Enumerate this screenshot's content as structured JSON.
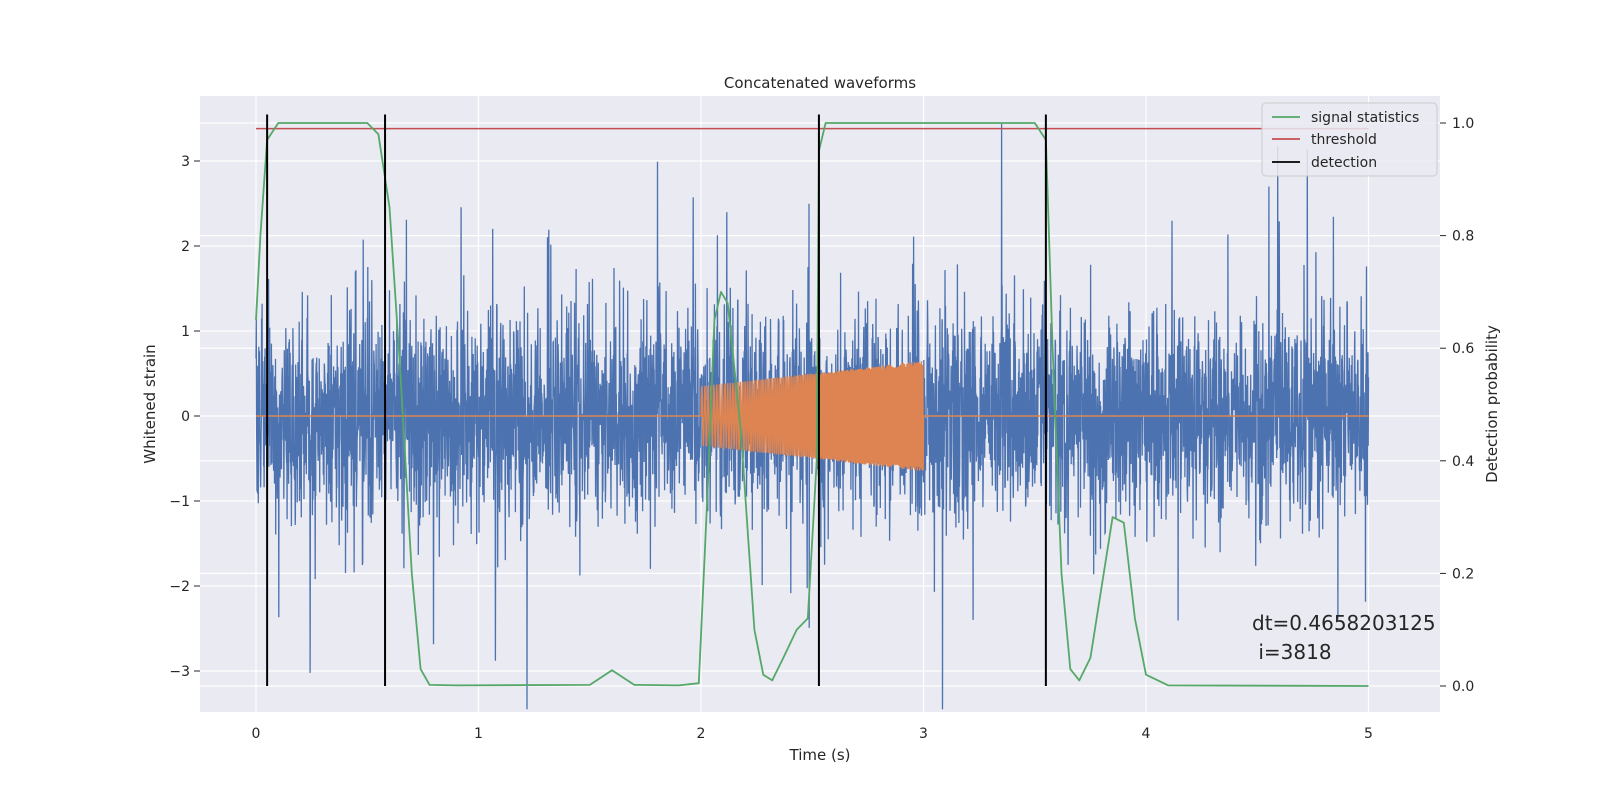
{
  "chart_data": {
    "type": "line",
    "title": "Concatenated waveforms",
    "xlabel": "Time (s)",
    "ylabel": "Whitened strain",
    "y2label": "Detection probability",
    "xlim": [
      -0.25,
      5.35
    ],
    "ylim": [
      -3.5,
      3.75
    ],
    "y2lim": [
      -0.05,
      1.035
    ],
    "xticks": [
      0,
      1,
      2,
      3,
      4,
      5
    ],
    "xtick_labels": [
      "0",
      "1",
      "2",
      "3",
      "4",
      "5"
    ],
    "yticks": [
      -3,
      -2,
      -1,
      0,
      1,
      2,
      3
    ],
    "ytick_labels": [
      "−3",
      "−2",
      "−1",
      "0",
      "1",
      "2",
      "3"
    ],
    "y2ticks": [
      0.0,
      0.2,
      0.4,
      0.6,
      0.8,
      1.0
    ],
    "y2tick_labels": [
      "0.0",
      "0.2",
      "0.4",
      "0.6",
      "0.8",
      "1.0"
    ],
    "grid": true,
    "legend_position": "top-right",
    "colors": {
      "noise": "#4c72b0",
      "injection": "#dd8452",
      "signal_statistics": "#55a868",
      "threshold": "#c44e52",
      "detection": "#000000",
      "background": "#eaeaf2",
      "grid": "#ffffff"
    },
    "noise": {
      "x_range": [
        0,
        5
      ],
      "std": 0.6,
      "max_abs": 3.45
    },
    "injection": {
      "x_range": [
        2,
        3
      ],
      "amp_start": 0.35,
      "amp_end": 0.65
    },
    "threshold": {
      "value": 0.99,
      "x_range": [
        0,
        5
      ]
    },
    "detections": [
      0.05,
      0.58,
      2.53,
      3.55
    ],
    "signal_statistics": {
      "x": [
        0,
        0.02,
        0.05,
        0.1,
        0.2,
        0.5,
        0.55,
        0.6,
        0.65,
        0.7,
        0.74,
        0.78,
        0.9,
        1.5,
        1.6,
        1.7,
        1.9,
        1.99,
        2.03,
        2.06,
        2.09,
        2.12,
        2.18,
        2.24,
        2.28,
        2.32,
        2.37,
        2.43,
        2.48,
        2.52,
        2.53,
        2.56,
        2.6,
        3.5,
        3.55,
        3.58,
        3.62,
        3.66,
        3.7,
        3.75,
        3.85,
        3.9,
        3.95,
        4.0,
        4.1,
        5.0
      ],
      "values": [
        0.65,
        0.8,
        0.97,
        1.0,
        1.0,
        1.0,
        0.98,
        0.85,
        0.55,
        0.2,
        0.03,
        0.002,
        0.001,
        0.002,
        0.028,
        0.002,
        0.001,
        0.005,
        0.35,
        0.65,
        0.7,
        0.68,
        0.45,
        0.1,
        0.02,
        0.01,
        0.05,
        0.1,
        0.12,
        0.4,
        0.95,
        1.0,
        1.0,
        1.0,
        0.97,
        0.6,
        0.2,
        0.03,
        0.01,
        0.05,
        0.3,
        0.29,
        0.12,
        0.02,
        0.001,
        0.0
      ]
    },
    "legend": {
      "items": [
        {
          "label": "signal statistics",
          "color": "#55a868"
        },
        {
          "label": "threshold",
          "color": "#c44e52"
        },
        {
          "label": "detection",
          "color": "#000000"
        }
      ]
    },
    "annotation": {
      "line1": "dt=0.4658203125",
      "line2": " i=3818"
    }
  }
}
